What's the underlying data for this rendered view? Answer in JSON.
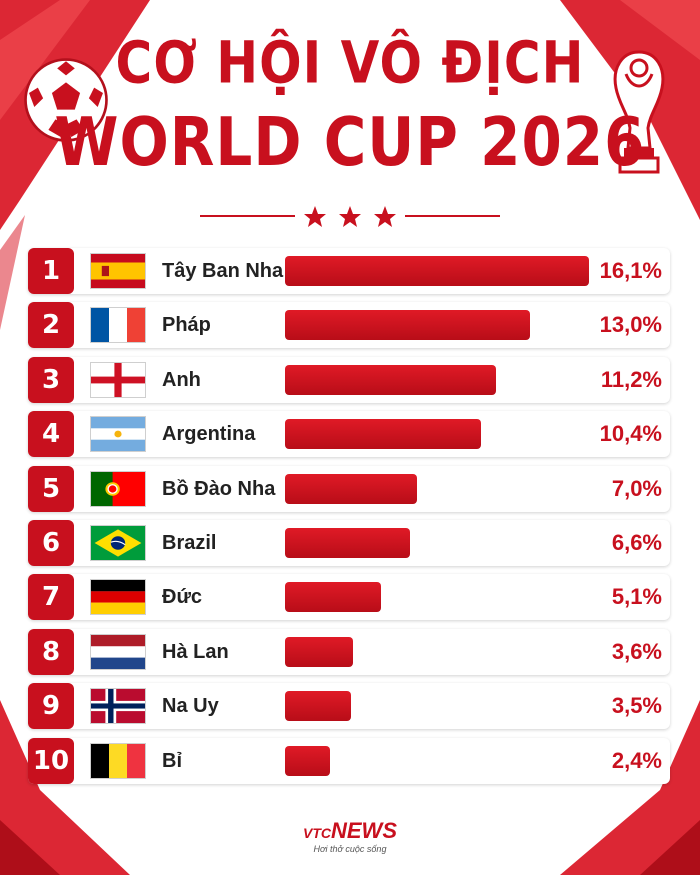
{
  "header": {
    "title_line1": "CƠ HỘI VÔ ĐỊCH",
    "title_line2": "WORLD CUP 2026"
  },
  "colors": {
    "accent": "#c8101e",
    "background": "#ffffff",
    "text": "#222222"
  },
  "icons": {
    "football": "football-icon",
    "trophy": "world-cup-trophy-icon",
    "stars": "three-stars-icon"
  },
  "chart_data": {
    "type": "bar",
    "orientation": "horizontal",
    "unit": "%",
    "categories": [
      "Tây Ban Nha",
      "Pháp",
      "Anh",
      "Argentina",
      "Bồ Đào Nha",
      "Brazil",
      "Đức",
      "Hà Lan",
      "Na Uy",
      "Bỉ"
    ],
    "values": [
      16.1,
      13.0,
      11.2,
      10.4,
      7.0,
      6.6,
      5.1,
      3.6,
      3.5,
      2.4
    ],
    "value_labels": [
      "16,1%",
      "13,0%",
      "11,2%",
      "10,4%",
      "7,0%",
      "6,6%",
      "5,1%",
      "3,6%",
      "3,5%",
      "2,4%"
    ],
    "ranks": [
      "1",
      "2",
      "3",
      "4",
      "5",
      "6",
      "7",
      "8",
      "9",
      "10"
    ],
    "flags": [
      "spain-flag",
      "france-flag",
      "england-flag",
      "argentina-flag",
      "portugal-flag",
      "brazil-flag",
      "germany-flag",
      "netherlands-flag",
      "norway-flag",
      "belgium-flag"
    ],
    "title": "CƠ HỘI VÔ ĐỊCH WORLD CUP 2026",
    "xlabel": "",
    "ylabel": "",
    "xlim": [
      0,
      16.1
    ],
    "grid": false,
    "legend": false
  },
  "footer": {
    "logo_vtc": "VTC",
    "logo_news": "NEWS",
    "tagline": "Hơi thở cuộc sống"
  }
}
